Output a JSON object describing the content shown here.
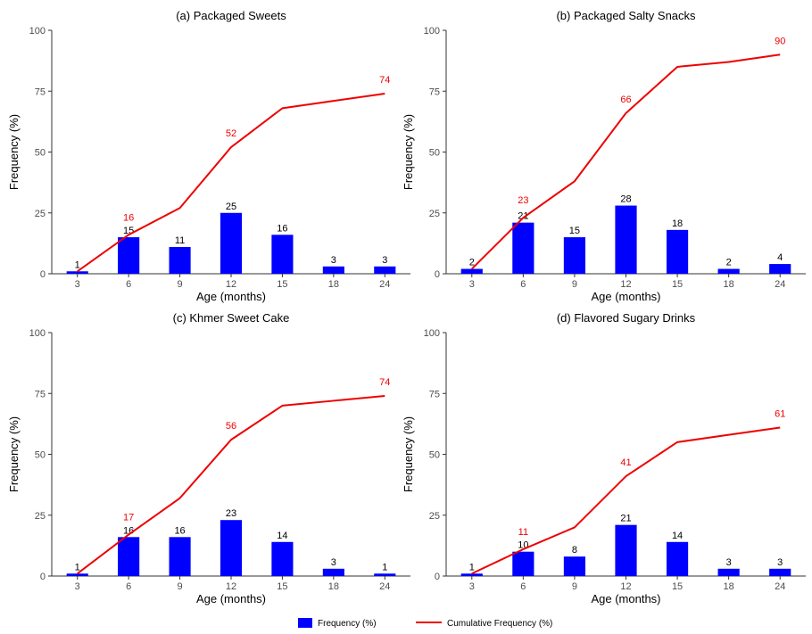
{
  "colors": {
    "bar": "#0000ff",
    "line": "#ee0000",
    "axis": "#333333"
  },
  "legend": {
    "items": [
      {
        "label": "Frequency (%)",
        "kind": "bar"
      },
      {
        "label": "Cumulative Frequency (%)",
        "kind": "line"
      }
    ]
  },
  "chart_data": [
    {
      "type": "bar+line",
      "title": "(a) Packaged Sweets",
      "xlabel": "Age (months)",
      "ylabel": "Frequency (%)",
      "ylim": [
        0,
        100
      ],
      "yticks": [
        "0",
        "25",
        "50",
        "75",
        "100"
      ],
      "categories": [
        "3",
        "6",
        "9",
        "12",
        "15",
        "18",
        "24"
      ],
      "series": [
        {
          "name": "Frequency (%)",
          "kind": "bar",
          "values": [
            1,
            15,
            11,
            25,
            16,
            3,
            3
          ],
          "labels": [
            "1",
            "15",
            "11",
            "25",
            "16",
            "3",
            "3"
          ]
        },
        {
          "name": "Cumulative Frequency (%)",
          "kind": "line",
          "values": [
            1,
            16,
            27,
            52,
            68,
            71,
            74
          ],
          "labels": [
            "",
            "16",
            "",
            "52",
            "",
            "",
            "74"
          ]
        }
      ]
    },
    {
      "type": "bar+line",
      "title": "(b) Packaged Salty Snacks",
      "xlabel": "Age (months)",
      "ylabel": "Frequency (%)",
      "ylim": [
        0,
        100
      ],
      "yticks": [
        "0",
        "25",
        "50",
        "75",
        "100"
      ],
      "categories": [
        "3",
        "6",
        "9",
        "12",
        "15",
        "18",
        "24"
      ],
      "series": [
        {
          "name": "Frequency (%)",
          "kind": "bar",
          "values": [
            2,
            21,
            15,
            28,
            18,
            2,
            4
          ],
          "labels": [
            "2",
            "21",
            "15",
            "28",
            "18",
            "2",
            "4"
          ]
        },
        {
          "name": "Cumulative Frequency (%)",
          "kind": "line",
          "values": [
            2,
            23,
            38,
            66,
            85,
            87,
            90
          ],
          "labels": [
            "",
            "23",
            "",
            "66",
            "",
            "",
            "90"
          ]
        }
      ]
    },
    {
      "type": "bar+line",
      "title": "(c) Khmer Sweet Cake",
      "xlabel": "Age (months)",
      "ylabel": "Frequency (%)",
      "ylim": [
        0,
        100
      ],
      "yticks": [
        "0",
        "25",
        "50",
        "75",
        "100"
      ],
      "categories": [
        "3",
        "6",
        "9",
        "12",
        "15",
        "18",
        "24"
      ],
      "series": [
        {
          "name": "Frequency (%)",
          "kind": "bar",
          "values": [
            1,
            16,
            16,
            23,
            14,
            3,
            1
          ],
          "labels": [
            "1",
            "16",
            "16",
            "23",
            "14",
            "3",
            "1"
          ]
        },
        {
          "name": "Cumulative Frequency (%)",
          "kind": "line",
          "values": [
            1,
            17,
            32,
            56,
            70,
            72,
            74
          ],
          "labels": [
            "",
            "17",
            "",
            "56",
            "",
            "",
            "74"
          ]
        }
      ]
    },
    {
      "type": "bar+line",
      "title": "(d) Flavored Sugary Drinks",
      "xlabel": "Age (months)",
      "ylabel": "Frequency (%)",
      "ylim": [
        0,
        100
      ],
      "yticks": [
        "0",
        "25",
        "50",
        "75",
        "100"
      ],
      "categories": [
        "3",
        "6",
        "9",
        "12",
        "15",
        "18",
        "24"
      ],
      "series": [
        {
          "name": "Frequency (%)",
          "kind": "bar",
          "values": [
            1,
            10,
            8,
            21,
            14,
            3,
            3
          ],
          "labels": [
            "1",
            "10",
            "8",
            "21",
            "14",
            "3",
            "3"
          ]
        },
        {
          "name": "Cumulative Frequency (%)",
          "kind": "line",
          "values": [
            1,
            11,
            20,
            41,
            55,
            58,
            61
          ],
          "labels": [
            "",
            "11",
            "",
            "41",
            "",
            "",
            "61"
          ]
        }
      ]
    }
  ]
}
